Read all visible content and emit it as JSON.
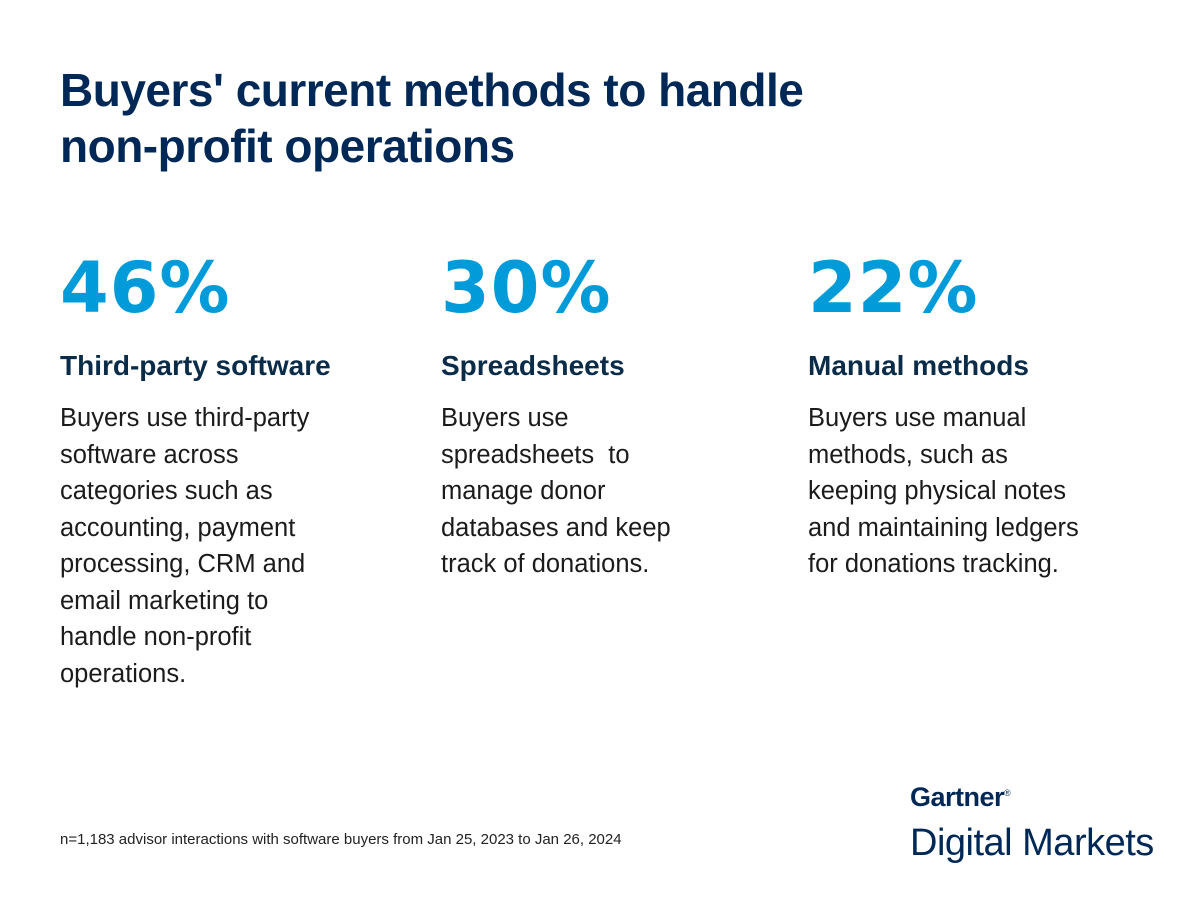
{
  "title": {
    "lines": [
      "Buyers' current methods to handle",
      "non-profit operations"
    ]
  },
  "colors": {
    "title": "#002856",
    "accent": "#009bd8",
    "heading": "#0a2c48"
  },
  "stats": [
    {
      "value": "46%",
      "heading": "Third-party software",
      "lines": [
        "Buyers use third-party",
        "software across",
        "categories such as",
        "accounting, payment",
        "processing, CRM and",
        "email marketing to",
        "handle non-profit",
        "operations."
      ]
    },
    {
      "value": "30%",
      "heading": "Spreadsheets",
      "lines": [
        "Buyers use",
        "spreadsheets  to",
        "manage donor",
        "databases and keep",
        "track of donations."
      ]
    },
    {
      "value": "22%",
      "heading": "Manual methods",
      "lines": [
        "Buyers use manual",
        "methods, such as",
        "keeping physical notes",
        "and maintaining ledgers",
        "for donations tracking."
      ]
    }
  ],
  "footnote": "n=1,183 advisor interactions with software buyers from Jan 25, 2023 to Jan 26, 2024",
  "logo": {
    "brand": "Gartner",
    "mark": "®",
    "product": "Digital Markets"
  }
}
